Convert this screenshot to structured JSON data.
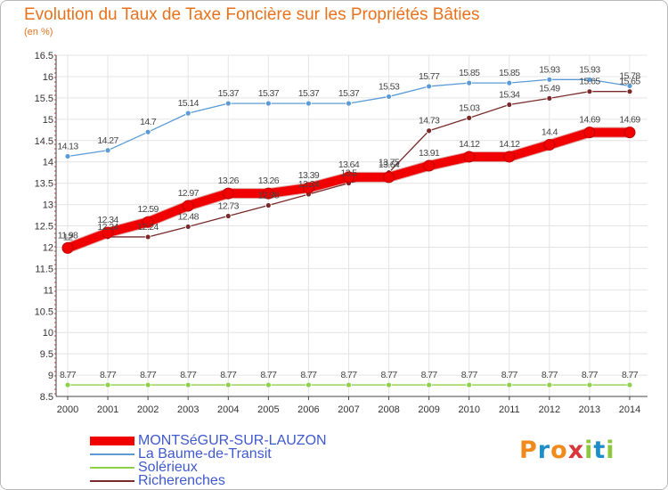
{
  "title": "Evolution du Taux de Taxe Foncière sur les Propriétés Bâties",
  "unit": "(en %)",
  "chart_data": {
    "type": "line",
    "title": "Evolution du Taux de Taxe Foncière sur les Propriétés Bâties",
    "ylabel": "(en %)",
    "xlabel": "",
    "ylim": [
      8.5,
      16.5
    ],
    "yticks": [
      "8.5",
      "9",
      "9.5",
      "10",
      "10.5",
      "11",
      "11.5",
      "12",
      "12.5",
      "13",
      "13.5",
      "14",
      "14.5",
      "15",
      "15.5",
      "16",
      "16.5"
    ],
    "categories": [
      "2000",
      "2001",
      "2002",
      "2003",
      "2004",
      "2005",
      "2006",
      "2007",
      "2008",
      "2009",
      "2010",
      "2011",
      "2012",
      "2013",
      "2014"
    ],
    "series": [
      {
        "name": "La Baume-de-Transit",
        "color": "#5b9bd5",
        "values": [
          14.13,
          14.27,
          14.7,
          15.14,
          15.37,
          15.37,
          15.37,
          15.37,
          15.53,
          15.77,
          15.85,
          15.85,
          15.93,
          15.93,
          15.78
        ],
        "labels": [
          "14.13",
          "14.27",
          "14.7",
          "15.14",
          "15.37",
          "15.37",
          "15.37",
          "15.37",
          "15.53",
          "15.77",
          "15.85",
          "15.85",
          "15.93",
          "15.93",
          "15.78"
        ]
      },
      {
        "name": "Solérieux",
        "color": "#8dd14a",
        "values": [
          8.77,
          8.77,
          8.77,
          8.77,
          8.77,
          8.77,
          8.77,
          8.77,
          8.77,
          8.77,
          8.77,
          8.77,
          8.77,
          8.77,
          8.77
        ],
        "labels": [
          "8.77",
          "8.77",
          "8.77",
          "8.77",
          "8.77",
          "8.77",
          "8.77",
          "8.77",
          "8.77",
          "8.77",
          "8.77",
          "8.77",
          "8.77",
          "8.77",
          "8.77"
        ]
      },
      {
        "name": "Richerenches",
        "color": "#7a2a2a",
        "values": [
          12,
          12.24,
          12.24,
          12.48,
          12.73,
          12.98,
          13.24,
          13.5,
          13.75,
          14.73,
          15.03,
          15.34,
          15.49,
          15.65,
          15.65
        ],
        "labels": [
          "12",
          "12.24",
          "12.24",
          "12.48",
          "12.73",
          "12.98",
          "13.24",
          "13.5",
          "13.75",
          "14.73",
          "15.03",
          "15.34",
          "15.49",
          "15.65",
          "15.65"
        ]
      },
      {
        "name": "MONTSéGUR-SUR-LAUZON",
        "color": "#f00000",
        "values": [
          11.98,
          12.34,
          12.59,
          12.97,
          13.26,
          13.26,
          13.39,
          13.64,
          13.64,
          13.91,
          14.12,
          14.12,
          14.4,
          14.69,
          14.69
        ],
        "labels": [
          "11.98",
          "12.34",
          "12.59",
          "12.97",
          "13.26",
          "13.26",
          "13.39",
          "13.64",
          "13.64",
          "13.91",
          "14.12",
          "14.12",
          "14.4",
          "14.69",
          "14.69"
        ]
      }
    ]
  },
  "legend": [
    {
      "label": "MONTSéGUR-SUR-LAUZON",
      "color": "#f00000"
    },
    {
      "label": "La Baume-de-Transit",
      "color": "#5b9bd5"
    },
    {
      "label": "Solérieux",
      "color": "#8dd14a"
    },
    {
      "label": "Richerenches",
      "color": "#7a2a2a"
    }
  ],
  "logo": {
    "letters": [
      "P",
      "r",
      "o",
      "x",
      "i",
      "t",
      "i"
    ],
    "colors": [
      "#f08a1c",
      "#1d8ec7",
      "#f08a1c",
      "#d8363a",
      "#8dc63f",
      "#1d8ec7",
      "#8dc63f"
    ]
  }
}
